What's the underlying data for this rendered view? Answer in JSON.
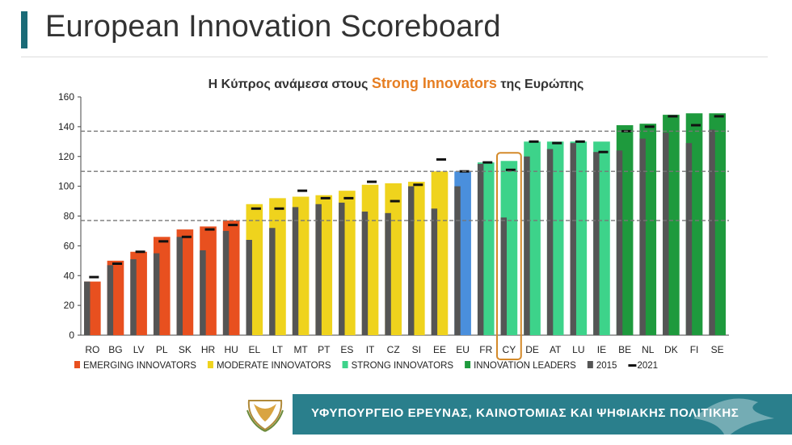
{
  "page": {
    "title": "European Innovation Scoreboard"
  },
  "chart_title": {
    "prefix": "Η Κύπρος ανάμεσα στους",
    "highlight": "Strong Innovators",
    "suffix": "της Ευρώπης"
  },
  "footer": {
    "ministry": "ΥΦΥΠΟΥΡΓΕΙΟ ΕΡΕΥΝΑΣ, ΚΑΙΝΟΤΟΜΙΑΣ ΚΑΙ ΨΗΦΙΑΚΗΣ ΠΟΛΙΤΙΚΗΣ"
  },
  "colors": {
    "emerging": "#e8501f",
    "moderate": "#efd31d",
    "strong": "#3dd38a",
    "leader": "#1e9a3d",
    "eu": "#4a8fdc",
    "bar2015": "#555555",
    "mark2021": "#111111",
    "cy_highlight": "#d48a2a",
    "ref_line": "#777777"
  },
  "chart_data": {
    "type": "bar",
    "categories": [
      "RO",
      "BG",
      "LV",
      "PL",
      "SK",
      "HR",
      "HU",
      "EL",
      "LT",
      "MT",
      "PT",
      "ES",
      "IT",
      "CZ",
      "SI",
      "EE",
      "EU",
      "FR",
      "CY",
      "DE",
      "AT",
      "LU",
      "IE",
      "BE",
      "NL",
      "DK",
      "FI",
      "SE"
    ],
    "groups": [
      "emerging",
      "emerging",
      "emerging",
      "emerging",
      "emerging",
      "emerging",
      "emerging",
      "moderate",
      "moderate",
      "moderate",
      "moderate",
      "moderate",
      "moderate",
      "moderate",
      "moderate",
      "moderate",
      "eu",
      "strong",
      "strong",
      "strong",
      "strong",
      "strong",
      "strong",
      "leader",
      "leader",
      "leader",
      "leader",
      "leader"
    ],
    "series": [
      {
        "name": "",
        "values": [
          36,
          50,
          56,
          66,
          71,
          73,
          77,
          88,
          92,
          93,
          94,
          97,
          101,
          102,
          103,
          110,
          110,
          116,
          117,
          130,
          130,
          130,
          130,
          141,
          142,
          148,
          149,
          149
        ]
      },
      {
        "name": "2015",
        "values": [
          36,
          47,
          51,
          55,
          66,
          57,
          70,
          64,
          72,
          86,
          88,
          89,
          83,
          82,
          100,
          85,
          100,
          115,
          79,
          120,
          125,
          129,
          123,
          124,
          132,
          136,
          129,
          138
        ]
      },
      {
        "name": "2021",
        "values": [
          39,
          48,
          56,
          63,
          66,
          71,
          74,
          85,
          85,
          97,
          92,
          92,
          103,
          90,
          101,
          118,
          110,
          116,
          111,
          130,
          129,
          130,
          123,
          137,
          140,
          147,
          141,
          147
        ]
      }
    ],
    "reference_lines": [
      77,
      110,
      137
    ],
    "highlight_category": "CY",
    "ylim": [
      0,
      160
    ],
    "yticks": [
      0,
      20,
      40,
      60,
      80,
      100,
      120,
      140,
      160
    ],
    "legend": [
      {
        "label": "EMERGING INNOVATORS",
        "color_key": "emerging",
        "kind": "square"
      },
      {
        "label": "MODERATE INNOVATORS",
        "color_key": "moderate",
        "kind": "square"
      },
      {
        "label": "STRONG INNOVATORS",
        "color_key": "strong",
        "kind": "square"
      },
      {
        "label": "INNOVATION LEADERS",
        "color_key": "leader",
        "kind": "square"
      },
      {
        "label": "2015",
        "color_key": "bar2015",
        "kind": "square"
      },
      {
        "label": "2021",
        "color_key": "mark2021",
        "kind": "dash"
      }
    ],
    "legend_position": "bottom"
  }
}
